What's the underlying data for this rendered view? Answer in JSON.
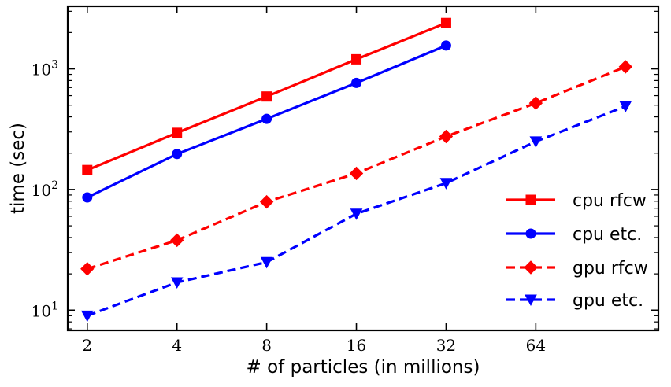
{
  "chart_data": {
    "type": "line",
    "xscale": "log2",
    "yscale": "log10",
    "xlabel": "# of particles (in millions)",
    "ylabel": "time (sec)",
    "xlim": [
      1.72,
      165
    ],
    "ylim": [
      6.8,
      3300
    ],
    "xticks": [
      2,
      4,
      8,
      16,
      32,
      64
    ],
    "xtick_labels": [
      "2",
      "4",
      "8",
      "16",
      "32",
      "64"
    ],
    "yticks": [
      10,
      100,
      1000
    ],
    "ytick_labels": [
      {
        "base": "10",
        "exp": "1"
      },
      {
        "base": "10",
        "exp": "2"
      },
      {
        "base": "10",
        "exp": "3"
      }
    ],
    "legend_position": "lower-right",
    "series": [
      {
        "name": "cpu rfcw",
        "color": "#ff0000",
        "dash": "solid",
        "marker": "square",
        "x": [
          2,
          4,
          8,
          16,
          32
        ],
        "y": [
          145,
          295,
          590,
          1200,
          2400
        ]
      },
      {
        "name": "cpu etc.",
        "color": "#0000ff",
        "dash": "solid",
        "marker": "circle",
        "x": [
          2,
          4,
          8,
          16,
          32
        ],
        "y": [
          86,
          197,
          385,
          765,
          1560
        ]
      },
      {
        "name": "gpu rfcw",
        "color": "#ff0000",
        "dash": "dashed",
        "marker": "diamond",
        "x": [
          2,
          4,
          8,
          16,
          32,
          64,
          128
        ],
        "y": [
          22,
          38,
          79,
          136,
          275,
          520,
          1040
        ]
      },
      {
        "name": "gpu etc.",
        "color": "#0000ff",
        "dash": "dashed",
        "marker": "triangle-down",
        "x": [
          2,
          4,
          8,
          16,
          32,
          64,
          128
        ],
        "y": [
          9,
          17,
          25,
          63,
          113,
          250,
          490
        ]
      }
    ]
  }
}
